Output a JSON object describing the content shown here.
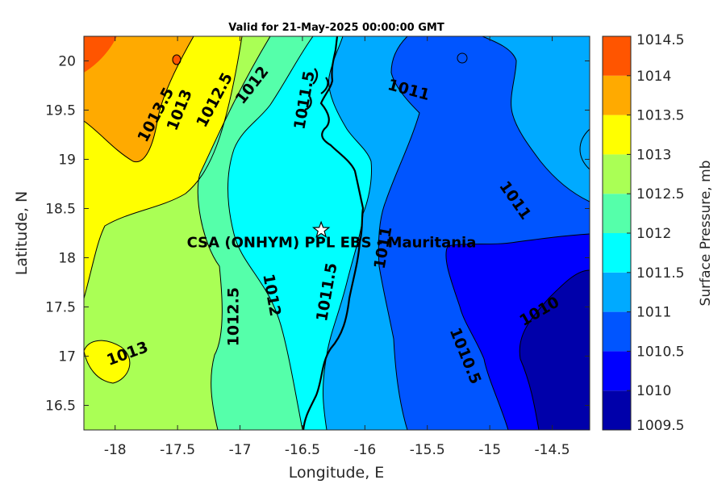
{
  "chart_data": {
    "type": "heatmap",
    "title": "Valid for 21-May-2025 00:00:00 GMT",
    "xlabel": "Longitude, E",
    "ylabel": "Latitude, N",
    "xlim": [
      -18.25,
      -14.2
    ],
    "ylim": [
      16.25,
      20.25
    ],
    "xticks": [
      -18,
      -17.5,
      -17,
      -16.5,
      -16,
      -15.5,
      -15,
      -14.5
    ],
    "yticks": [
      16.5,
      17,
      17.5,
      18,
      18.5,
      19,
      19.5,
      20
    ],
    "xtick_labels": [
      "-18",
      "-17.5",
      "-17",
      "-16.5",
      "-16",
      "-15.5",
      "-15",
      "-14.5"
    ],
    "ytick_labels": [
      "16.5",
      "17",
      "17.5",
      "18",
      "18.5",
      "19",
      "19.5",
      "20"
    ],
    "colorbar": {
      "label": "Surface Pressure, mb",
      "levels": [
        1009.5,
        1010,
        1010.5,
        1011,
        1011.5,
        1012,
        1012.5,
        1013,
        1013.5,
        1014,
        1014.5
      ],
      "tick_labels": [
        "1009.5",
        "1010",
        "1010.5",
        "1011",
        "1011.5",
        "1012",
        "1012.5",
        "1013",
        "1013.5",
        "1014",
        "1014.5"
      ],
      "colors": [
        "#0000aa",
        "#0000ff",
        "#0055ff",
        "#00aaff",
        "#00ffff",
        "#55ffaa",
        "#aaff55",
        "#ffff00",
        "#ffaa00",
        "#ff5500",
        "#ff0000"
      ]
    },
    "contour_labels": [
      {
        "text": "1013.5",
        "lon": -17.67,
        "lat": 19.45,
        "angle": -62
      },
      {
        "text": "1013",
        "lon": -17.48,
        "lat": 19.5,
        "angle": -68
      },
      {
        "text": "1012.5",
        "lon": -17.2,
        "lat": 19.6,
        "angle": -62
      },
      {
        "text": "1012",
        "lon": -16.9,
        "lat": 19.75,
        "angle": -52
      },
      {
        "text": "1011.5",
        "lon": -16.48,
        "lat": 19.6,
        "angle": -80
      },
      {
        "text": "1011",
        "lon": -15.65,
        "lat": 19.7,
        "angle": 15
      },
      {
        "text": "1011",
        "lon": -14.8,
        "lat": 18.58,
        "angle": 55
      },
      {
        "text": "1011",
        "lon": -15.85,
        "lat": 18.1,
        "angle": -80
      },
      {
        "text": "1011.5",
        "lon": -16.3,
        "lat": 17.65,
        "angle": -80
      },
      {
        "text": "1012",
        "lon": -16.75,
        "lat": 17.62,
        "angle": 80
      },
      {
        "text": "1012.5",
        "lon": -17.05,
        "lat": 17.4,
        "angle": -90
      },
      {
        "text": "1010.5",
        "lon": -15.2,
        "lat": 17.0,
        "angle": 68
      },
      {
        "text": "1010",
        "lon": -14.6,
        "lat": 17.45,
        "angle": -30
      },
      {
        "text": "1013",
        "lon": -17.9,
        "lat": 17.02,
        "angle": -20
      }
    ],
    "site": {
      "name": "CSA (ONHYM) PPL EBS - Mauritania",
      "lon": -16.35,
      "lat": 18.28
    }
  }
}
